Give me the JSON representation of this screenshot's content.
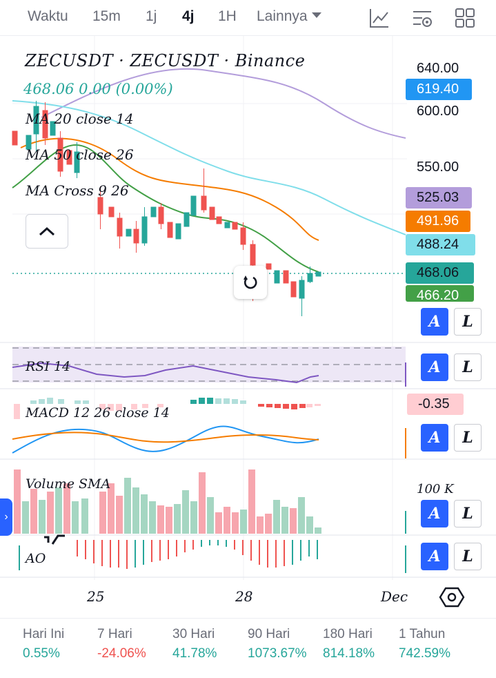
{
  "toolbar": {
    "timeframes": [
      "Waktu",
      "15m",
      "1j",
      "4j",
      "1H"
    ],
    "active_timeframe": "4j",
    "more_label": "Lainnya",
    "icons": [
      "chart-indicators-icon",
      "chart-settings-icon",
      "layouts-grid-icon"
    ]
  },
  "chart": {
    "title": "ZECUSDT · ZECUSDT · Binance",
    "price_line": "468.06  0.00  (0.00%)",
    "ma20_label": "MA 20 close 14",
    "ma50_label": "MA 50 close 26",
    "macross_label": "MA Cross 9 26",
    "price_axis": [
      "640.00",
      "600.00",
      "550.00"
    ],
    "price_tags": [
      {
        "label": "619.40",
        "bg": "#2196f3",
        "fg": "#ffffff"
      },
      {
        "label": "525.03",
        "bg": "#b39ddb",
        "fg": "#131722"
      },
      {
        "label": "491.96",
        "bg": "#f57c00",
        "fg": "#ffffff"
      },
      {
        "label": "488.24",
        "bg": "#80deea",
        "fg": "#131722"
      },
      {
        "label": "468.06",
        "bg": "#26a69a",
        "fg": "#131722"
      },
      {
        "label": "466.20",
        "bg": "#43a047",
        "fg": "#ffffff"
      }
    ],
    "time_axis": [
      "25",
      "28",
      "Dec"
    ]
  },
  "panes": {
    "rsi_label": "RSI 14",
    "macd_label": "MACD 12 26 close 14",
    "macd_value": "-0.35",
    "volume_label": "Volume SMA",
    "volume_axis": "100 K",
    "ao_label": "AO"
  },
  "buttons": {
    "a": "A",
    "l": "L"
  },
  "colors": {
    "up": "#26a69a",
    "down": "#ef5350",
    "accent": "#2962ff",
    "ma_purple": "#b39ddb",
    "ma_cyan": "#80deea",
    "ma_orange": "#f57c00",
    "ma_green": "#43a047"
  },
  "performance": [
    {
      "label": "Hari Ini",
      "value": "0.55%",
      "dir": "up"
    },
    {
      "label": "7 Hari",
      "value": "-24.06%",
      "dir": "down"
    },
    {
      "label": "30 Hari",
      "value": "41.78%",
      "dir": "up"
    },
    {
      "label": "90 Hari",
      "value": "1073.67%",
      "dir": "up"
    },
    {
      "label": "180 Hari",
      "value": "814.18%",
      "dir": "up"
    },
    {
      "label": "1 Tahun",
      "value": "742.59%",
      "dir": "up"
    }
  ]
}
